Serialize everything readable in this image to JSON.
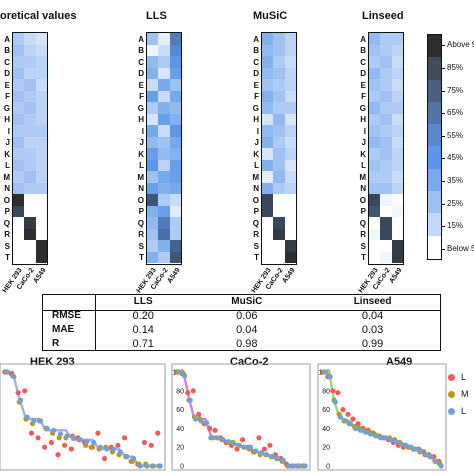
{
  "heatmaps": {
    "rows": [
      "A",
      "B",
      "C",
      "D",
      "E",
      "F",
      "G",
      "H",
      "I",
      "J",
      "K",
      "L",
      "M",
      "N",
      "O",
      "P",
      "Q",
      "R",
      "S",
      "T"
    ],
    "cols": [
      "HEK 293",
      "CaCo-2",
      "A549"
    ],
    "panels": [
      {
        "title": "oretical values",
        "cells": [
          [
            0.3,
            0.2,
            0.15
          ],
          [
            0.35,
            0.25,
            0.2
          ],
          [
            0.3,
            0.3,
            0.25
          ],
          [
            0.35,
            0.25,
            0.25
          ],
          [
            0.3,
            0.35,
            0.2
          ],
          [
            0.35,
            0.3,
            0.25
          ],
          [
            0.3,
            0.35,
            0.25
          ],
          [
            0.35,
            0.3,
            0.25
          ],
          [
            0.3,
            0.3,
            0.3
          ],
          [
            0.35,
            0.25,
            0.25
          ],
          [
            0.3,
            0.3,
            0.25
          ],
          [
            0.35,
            0.3,
            0.25
          ],
          [
            0.3,
            0.35,
            0.25
          ],
          [
            0.35,
            0.3,
            0.3
          ],
          [
            1.0,
            0.0,
            0.0
          ],
          [
            0.9,
            0.0,
            0.0
          ],
          [
            0.0,
            0.95,
            0.0
          ],
          [
            0.0,
            1.0,
            0.0
          ],
          [
            0.0,
            0.0,
            1.0
          ],
          [
            0.0,
            0.0,
            1.0
          ]
        ]
      },
      {
        "title": "LLS",
        "cells": [
          [
            0.35,
            0.1,
            0.7
          ],
          [
            0.05,
            0.2,
            0.65
          ],
          [
            0.4,
            0.3,
            0.6
          ],
          [
            0.45,
            0.15,
            0.55
          ],
          [
            0.2,
            0.5,
            0.35
          ],
          [
            0.55,
            0.2,
            0.5
          ],
          [
            0.3,
            0.45,
            0.4
          ],
          [
            0.15,
            0.55,
            0.45
          ],
          [
            0.5,
            0.2,
            0.6
          ],
          [
            0.4,
            0.35,
            0.5
          ],
          [
            0.55,
            0.4,
            0.45
          ],
          [
            0.6,
            0.25,
            0.55
          ],
          [
            0.35,
            0.5,
            0.55
          ],
          [
            0.55,
            0.45,
            0.5
          ],
          [
            0.85,
            0.3,
            0.2
          ],
          [
            0.45,
            0.55,
            0.1
          ],
          [
            0.4,
            0.7,
            0.3
          ],
          [
            0.35,
            0.75,
            0.3
          ],
          [
            0.3,
            0.45,
            0.8
          ],
          [
            0.45,
            0.3,
            0.85
          ]
        ]
      },
      {
        "title": "MuSiC",
        "cells": [
          [
            0.45,
            0.35,
            0.25
          ],
          [
            0.4,
            0.35,
            0.25
          ],
          [
            0.45,
            0.3,
            0.2
          ],
          [
            0.4,
            0.35,
            0.25
          ],
          [
            0.35,
            0.3,
            0.25
          ],
          [
            0.45,
            0.35,
            0.2
          ],
          [
            0.4,
            0.3,
            0.3
          ],
          [
            0.15,
            0.4,
            0.15
          ],
          [
            0.4,
            0.35,
            0.25
          ],
          [
            0.45,
            0.3,
            0.2
          ],
          [
            0.15,
            0.35,
            0.25
          ],
          [
            0.45,
            0.35,
            0.15
          ],
          [
            0.1,
            0.4,
            0.2
          ],
          [
            0.45,
            0.3,
            0.25
          ],
          [
            0.9,
            0.0,
            0.0
          ],
          [
            0.9,
            0.0,
            0.0
          ],
          [
            0.0,
            0.9,
            0.0
          ],
          [
            0.0,
            0.95,
            0.0
          ],
          [
            0.0,
            0.0,
            0.95
          ],
          [
            0.0,
            0.0,
            1.0
          ]
        ]
      },
      {
        "title": "Linseed",
        "cells": [
          [
            0.4,
            0.3,
            0.3
          ],
          [
            0.35,
            0.3,
            0.25
          ],
          [
            0.3,
            0.35,
            0.2
          ],
          [
            0.4,
            0.3,
            0.25
          ],
          [
            0.35,
            0.3,
            0.2
          ],
          [
            0.3,
            0.35,
            0.25
          ],
          [
            0.4,
            0.3,
            0.3
          ],
          [
            0.3,
            0.35,
            0.2
          ],
          [
            0.35,
            0.3,
            0.25
          ],
          [
            0.4,
            0.35,
            0.2
          ],
          [
            0.3,
            0.35,
            0.25
          ],
          [
            0.35,
            0.3,
            0.25
          ],
          [
            0.3,
            0.3,
            0.2
          ],
          [
            0.35,
            0.35,
            0.25
          ],
          [
            0.9,
            0.05,
            0.0
          ],
          [
            0.85,
            0.0,
            0.05
          ],
          [
            0.0,
            0.9,
            0.0
          ],
          [
            0.05,
            0.9,
            0.0
          ],
          [
            0.0,
            0.0,
            0.95
          ],
          [
            0.0,
            0.05,
            0.95
          ]
        ]
      }
    ]
  },
  "colorbar": {
    "labels": [
      "Above 95%",
      "85%",
      "75%",
      "65%",
      "55%",
      "45%",
      "35%",
      "25%",
      "15%",
      "Below 5%"
    ],
    "colors": [
      "#2e2e2e",
      "#444b59",
      "#4d5f80",
      "#5473a6",
      "#5b86cc",
      "#5f95e8",
      "#7aa9ef",
      "#9cc0f3",
      "#c2d8f8",
      "#ffffff"
    ]
  },
  "metrics": {
    "headers": [
      "",
      "LLS",
      "MuSiC",
      "Linseed"
    ],
    "rows": [
      {
        "name": "RMSE",
        "values": [
          "0.20",
          "0.06",
          "0.04"
        ]
      },
      {
        "name": "MAE",
        "values": [
          "0.14",
          "0.04",
          "0.03"
        ]
      },
      {
        "name": "R",
        "values": [
          "0.71",
          "0.98",
          "0.99"
        ]
      }
    ]
  },
  "chart_data": [
    {
      "type": "scatter",
      "title": "HEK 293",
      "ylim": [
        0,
        100
      ],
      "yticks": [],
      "series": [
        {
          "name": "L",
          "color": "#f05a5a",
          "values": [
            100,
            98,
            78,
            80,
            35,
            30,
            20,
            25,
            12,
            22,
            18,
            30,
            25,
            20,
            35,
            8,
            20,
            22,
            30,
            5,
            2,
            25,
            22,
            35
          ]
        },
        {
          "name": "M",
          "color": "#b89a10",
          "values": [
            100,
            96,
            68,
            50,
            45,
            48,
            40,
            35,
            30,
            30,
            32,
            28,
            22,
            20,
            18,
            20,
            15,
            12,
            10,
            5,
            2,
            2,
            0,
            0
          ]
        },
        {
          "name": "L",
          "color": "#6fa0e0",
          "values": [
            100,
            95,
            70,
            52,
            48,
            48,
            40,
            38,
            34,
            32,
            30,
            28,
            26,
            25,
            20,
            18,
            18,
            15,
            10,
            8,
            0,
            0,
            0,
            0
          ]
        }
      ],
      "fit": {
        "color": "#a0a0e8",
        "values": [
          100,
          100,
          72,
          50,
          50,
          50,
          38,
          38,
          38,
          38,
          28,
          28,
          28,
          28,
          18,
          18,
          18,
          18,
          10,
          10,
          0,
          0,
          0,
          0
        ]
      }
    },
    {
      "type": "scatter",
      "title": "CaCo-2",
      "ylim": [
        0,
        100
      ],
      "yticks": [
        "0",
        "20",
        "40",
        "60",
        "80",
        "100"
      ],
      "series": [
        {
          "name": "L",
          "color": "#f05a5a",
          "values": [
            100,
            98,
            78,
            80,
            55,
            45,
            40,
            38,
            30,
            25,
            22,
            18,
            28,
            20,
            15,
            30,
            18,
            22,
            12,
            8,
            2,
            0,
            0,
            0
          ]
        },
        {
          "name": "M",
          "color": "#b89a10",
          "values": [
            100,
            98,
            70,
            52,
            50,
            45,
            30,
            30,
            28,
            25,
            25,
            22,
            20,
            18,
            15,
            12,
            12,
            10,
            8,
            5,
            0,
            0,
            0,
            0
          ]
        },
        {
          "name": "L",
          "color": "#6fa0e0",
          "values": [
            100,
            96,
            70,
            50,
            48,
            46,
            30,
            30,
            28,
            26,
            24,
            22,
            20,
            20,
            16,
            14,
            12,
            10,
            8,
            6,
            0,
            0,
            0,
            0
          ]
        }
      ],
      "fit": {
        "color": "#d070d0",
        "values": [
          100,
          100,
          72,
          50,
          50,
          50,
          32,
          30,
          28,
          26,
          24,
          22,
          20,
          20,
          16,
          14,
          12,
          10,
          8,
          6,
          0,
          0,
          0,
          0
        ]
      }
    },
    {
      "type": "scatter",
      "title": "A549",
      "ylim": [
        0,
        100
      ],
      "yticks": [
        "0",
        "20",
        "40",
        "60",
        "80",
        "100"
      ],
      "series": [
        {
          "name": "L",
          "color": "#f05a5a",
          "values": [
            100,
            95,
            80,
            78,
            60,
            55,
            50,
            45,
            40,
            38,
            35,
            32,
            30,
            28,
            25,
            22,
            20,
            20,
            18,
            18,
            15,
            12,
            10,
            5
          ]
        },
        {
          "name": "M",
          "color": "#b89a10",
          "values": [
            100,
            96,
            70,
            55,
            48,
            45,
            42,
            40,
            38,
            36,
            34,
            32,
            30,
            30,
            28,
            25,
            22,
            20,
            18,
            15,
            12,
            10,
            5,
            2
          ]
        },
        {
          "name": "L",
          "color": "#6fa0e0",
          "values": [
            100,
            95,
            68,
            52,
            48,
            45,
            40,
            38,
            36,
            34,
            32,
            30,
            30,
            28,
            26,
            24,
            22,
            20,
            18,
            16,
            12,
            10,
            5,
            0
          ]
        }
      ],
      "fit": {
        "color": "#90d060",
        "values": [
          100,
          100,
          70,
          52,
          50,
          48,
          40,
          38,
          36,
          34,
          32,
          30,
          30,
          28,
          26,
          24,
          22,
          20,
          18,
          16,
          12,
          10,
          5,
          0
        ]
      }
    }
  ],
  "legend": {
    "items": [
      "L",
      "M",
      "L"
    ]
  }
}
